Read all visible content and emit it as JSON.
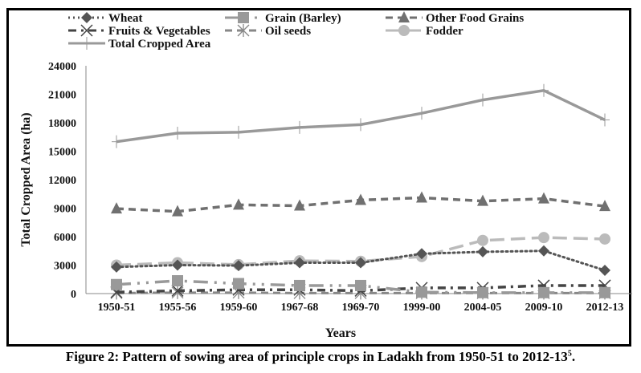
{
  "chart_data": {
    "type": "line",
    "title": "",
    "xlabel": "Years",
    "ylabel": "Total Cropped Area (ha)",
    "ylim": [
      0,
      24000
    ],
    "yticks": [
      0,
      3000,
      6000,
      9000,
      12000,
      15000,
      18000,
      21000,
      24000
    ],
    "grid": false,
    "legend_position": "top",
    "categories": [
      "1950-51",
      "1955-56",
      "1959-60",
      "1967-68",
      "1969-70",
      "1999-00",
      "2004-05",
      "2009-10",
      "2012-13"
    ],
    "series": [
      {
        "name": "Wheat",
        "color": "#555555",
        "dash": "dotted",
        "marker": "diamond",
        "values": [
          2800,
          3000,
          2950,
          3250,
          3250,
          4200,
          4400,
          4500,
          2450
        ]
      },
      {
        "name": "Grain (Barley)",
        "color": "#999999",
        "dash": "long-dash-dot-dot",
        "marker": "square",
        "values": [
          950,
          1350,
          1050,
          850,
          850,
          150,
          100,
          100,
          100
        ]
      },
      {
        "name": "Other Food Grains",
        "color": "#707070",
        "dash": "dashed",
        "marker": "triangle",
        "values": [
          8950,
          8650,
          9350,
          9250,
          9850,
          10100,
          9750,
          10000,
          9200
        ]
      },
      {
        "name": "Fruits & Vegetables",
        "color": "#444444",
        "dash": "dash-dot",
        "marker": "x",
        "values": [
          150,
          300,
          400,
          400,
          300,
          600,
          600,
          850,
          850
        ]
      },
      {
        "name": "Oil seeds",
        "color": "#888888",
        "dash": "dashed",
        "marker": "star",
        "values": [
          50,
          100,
          100,
          50,
          50,
          50,
          50,
          50,
          50
        ]
      },
      {
        "name": "Fodder",
        "color": "#bbbbbb",
        "dash": "long-dash",
        "marker": "circle",
        "values": [
          3000,
          3250,
          3050,
          3450,
          3400,
          3900,
          5600,
          5900,
          5750
        ]
      },
      {
        "name": "Total Cropped Area",
        "color": "#999999",
        "dash": "solid",
        "marker": "plus",
        "values": [
          16000,
          16900,
          17000,
          17500,
          17800,
          19000,
          20400,
          21400,
          18300
        ]
      }
    ]
  },
  "caption": {
    "text": "Figure 2: Pattern of sowing area of principle crops in Ladakh from 1950-51 to 2012-13",
    "superscript": "5",
    "end": "."
  }
}
